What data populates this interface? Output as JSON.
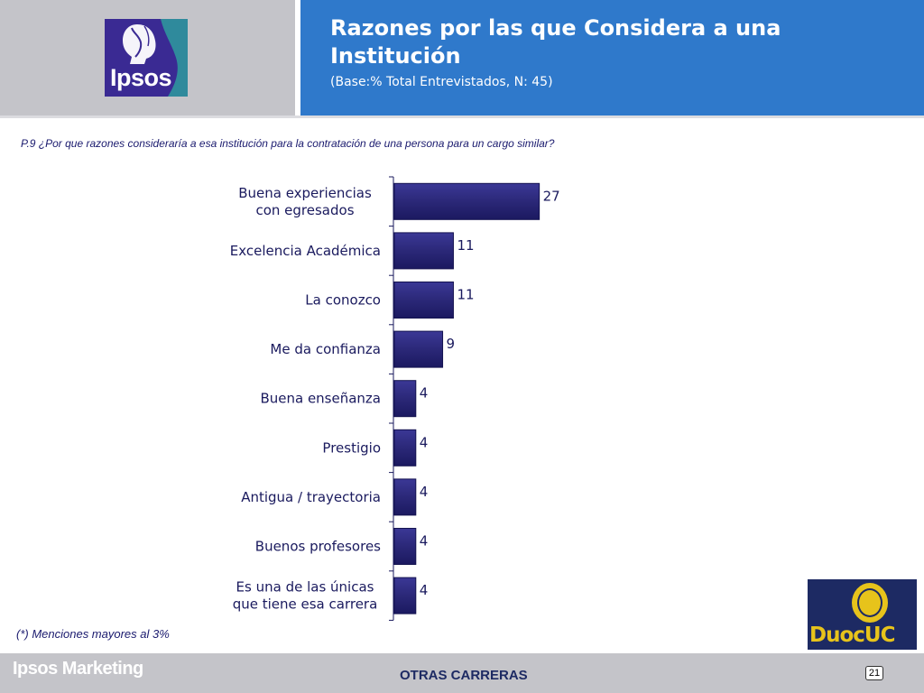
{
  "header": {
    "title": "Razones por las que Considera a una Institución",
    "subtitle": "(Base:% Total Entrevistados, N: 45)",
    "logo_text": "Ipsos"
  },
  "question": "P.9 ¿Por que razones consideraría a esa institución para la contratación de una persona para un cargo similar?",
  "note": "(*) Menciones mayores al 3%",
  "chart_data": {
    "type": "bar",
    "orientation": "horizontal",
    "categories": [
      [
        "Buena experiencias",
        "con egresados"
      ],
      [
        "Excelencia Académica"
      ],
      [
        "La conozco"
      ],
      [
        "Me da confianza"
      ],
      [
        "Buena  enseñanza"
      ],
      [
        "Prestigio"
      ],
      [
        "Antigua / trayectoria"
      ],
      [
        "Buenos profesores"
      ],
      [
        "Es una de las únicas",
        "que tiene esa carrera"
      ]
    ],
    "values": [
      27,
      11,
      11,
      9,
      4,
      4,
      4,
      4,
      4
    ],
    "bar_color": "#2b2878",
    "bar_edge_color": "#141350"
  },
  "footer": {
    "brand": "Ipsos Marketing",
    "section": "OTRAS CARRERAS",
    "page": "21"
  },
  "duoc_logo": {
    "text": "DuocUC"
  }
}
